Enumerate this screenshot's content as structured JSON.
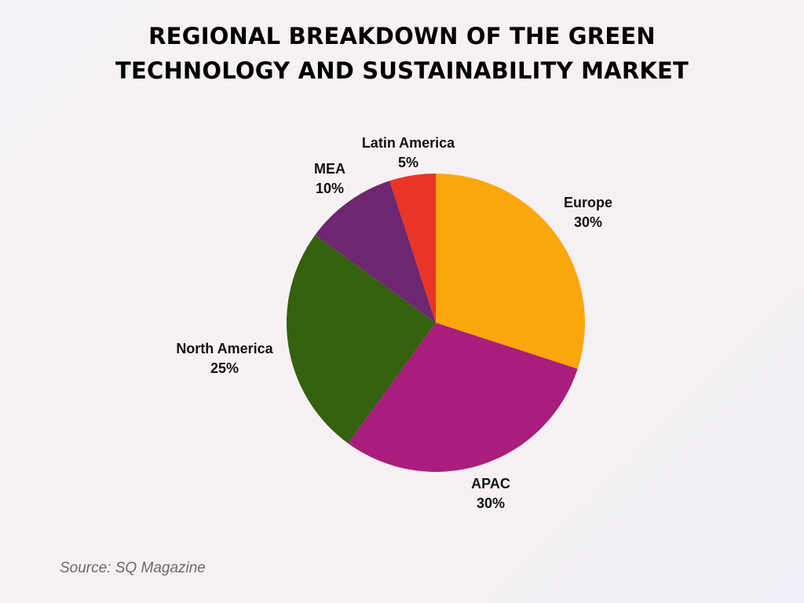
{
  "chart_data": {
    "type": "pie",
    "title": "REGIONAL BREAKDOWN OF THE GREEN TECHNOLOGY AND SUSTAINABILITY MARKET",
    "title_lines": [
      "REGIONAL BREAKDOWN OF THE GREEN",
      "TECHNOLOGY AND SUSTAINABILITY MARKET"
    ],
    "slices": [
      {
        "label": "Europe",
        "value": 30,
        "value_label": "30%",
        "color": "#FBA60A"
      },
      {
        "label": "APAC",
        "value": 30,
        "value_label": "30%",
        "color": "#A91E7D"
      },
      {
        "label": "North America",
        "value": 25,
        "value_label": "25%",
        "color": "#35600F"
      },
      {
        "label": "MEA",
        "value": 10,
        "value_label": "10%",
        "color": "#6E2670"
      },
      {
        "label": "Latin America",
        "value": 5,
        "value_label": "5%",
        "color": "#EA3424"
      }
    ],
    "start": "top",
    "direction": "clockwise"
  },
  "source": "Source: SQ Magazine"
}
